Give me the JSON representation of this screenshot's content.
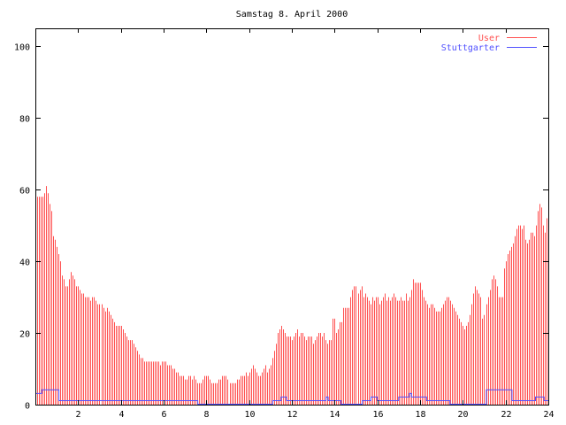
{
  "chart_data": {
    "type": "bar",
    "title": "Samstag 8. April 2000",
    "xlabel": "",
    "ylabel": "",
    "xlim": [
      0,
      24
    ],
    "ylim": [
      0,
      105
    ],
    "x_ticks": [
      2,
      4,
      6,
      8,
      10,
      12,
      14,
      16,
      18,
      20,
      22,
      24
    ],
    "y_ticks": [
      0,
      20,
      40,
      60,
      80,
      100
    ],
    "grid": false,
    "legend_position": "top-right",
    "x_step_hours": 0.083333,
    "series": [
      {
        "name": "User",
        "style": "impulses",
        "color": "#ff5050",
        "values": [
          56,
          58,
          58,
          58,
          58,
          59,
          61,
          59,
          56,
          54,
          47,
          46,
          44,
          42,
          40,
          36,
          35,
          33,
          33,
          35,
          37,
          36,
          35,
          33,
          33,
          32,
          31,
          31,
          30,
          30,
          30,
          29,
          30,
          30,
          29,
          28,
          28,
          28,
          27,
          26,
          27,
          26,
          25,
          24,
          23,
          22,
          22,
          22,
          22,
          21,
          20,
          19,
          18,
          18,
          18,
          17,
          16,
          15,
          14,
          13,
          13,
          12,
          12,
          12,
          12,
          12,
          12,
          12,
          12,
          12,
          11,
          12,
          12,
          12,
          11,
          11,
          11,
          10,
          10,
          9,
          9,
          8,
          8,
          8,
          7,
          7,
          8,
          8,
          7,
          8,
          7,
          6,
          6,
          6,
          7,
          8,
          8,
          8,
          7,
          6,
          6,
          6,
          6,
          7,
          7,
          8,
          8,
          8,
          7,
          6,
          6,
          6,
          6,
          7,
          7,
          8,
          8,
          8,
          9,
          8,
          9,
          10,
          11,
          10,
          9,
          8,
          8,
          9,
          10,
          11,
          9,
          10,
          11,
          13,
          15,
          17,
          20,
          21,
          22,
          21,
          20,
          19,
          19,
          19,
          18,
          19,
          20,
          21,
          19,
          20,
          20,
          19,
          18,
          19,
          19,
          19,
          17,
          18,
          19,
          20,
          20,
          19,
          20,
          18,
          17,
          18,
          18,
          24,
          24,
          20,
          21,
          23,
          23,
          27,
          27,
          27,
          27,
          30,
          32,
          33,
          33,
          31,
          32,
          33,
          30,
          31,
          30,
          29,
          28,
          30,
          29,
          30,
          30,
          28,
          29,
          30,
          31,
          29,
          30,
          29,
          30,
          31,
          30,
          29,
          29,
          30,
          29,
          29,
          31,
          29,
          30,
          32,
          35,
          34,
          34,
          34,
          34,
          32,
          30,
          29,
          28,
          27,
          28,
          28,
          27,
          26,
          26,
          26,
          27,
          28,
          29,
          30,
          30,
          29,
          28,
          27,
          26,
          25,
          24,
          23,
          22,
          21,
          22,
          23,
          25,
          28,
          31,
          33,
          32,
          31,
          30,
          24,
          25,
          28,
          30,
          32,
          35,
          36,
          35,
          33,
          30,
          30,
          30,
          38,
          40,
          42,
          43,
          44,
          45,
          47,
          49,
          50,
          50,
          49,
          50,
          46,
          45,
          46,
          48,
          48,
          47,
          50,
          54,
          56,
          55,
          50,
          48,
          52,
          53
        ]
      },
      {
        "name": "Stuttgarter",
        "style": "steps",
        "color": "#5050ff",
        "points": [
          [
            0,
            3
          ],
          [
            0.3,
            4
          ],
          [
            1.1,
            1
          ],
          [
            7.6,
            0
          ],
          [
            11.1,
            1
          ],
          [
            11.5,
            2
          ],
          [
            11.75,
            1
          ],
          [
            13.6,
            2
          ],
          [
            13.7,
            1
          ],
          [
            14.3,
            0
          ],
          [
            15.3,
            1
          ],
          [
            15.7,
            2
          ],
          [
            16.0,
            1
          ],
          [
            17.0,
            2
          ],
          [
            17.5,
            3
          ],
          [
            17.6,
            2
          ],
          [
            18.3,
            1
          ],
          [
            19.4,
            0
          ],
          [
            21.1,
            4
          ],
          [
            22.3,
            1
          ],
          [
            23.4,
            2
          ],
          [
            23.8,
            1
          ],
          [
            24,
            1
          ]
        ]
      }
    ]
  }
}
